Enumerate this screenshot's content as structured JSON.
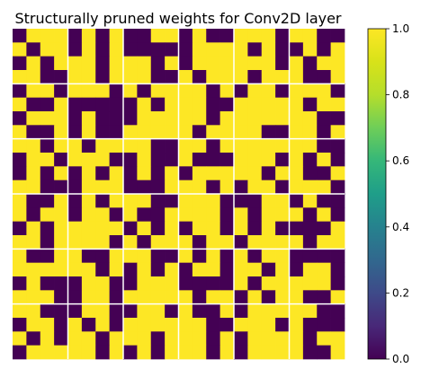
{
  "chart_data": {
    "type": "heatmap",
    "title": "Structurally pruned weights for Conv2D layer",
    "xlabel": "",
    "ylabel": "",
    "value_range": [
      0,
      1
    ],
    "colormap": "viridis",
    "colors": {
      "low": "#440154",
      "high": "#fde725",
      "separator": "#ffffff"
    },
    "colorbar": {
      "ticks": [
        0.0,
        0.2,
        0.4,
        0.6,
        0.8,
        1.0
      ],
      "tick_labels": [
        "0.0",
        "0.2",
        "0.4",
        "0.6",
        "0.8",
        "1.0"
      ]
    },
    "grid": true,
    "axes_visible": false,
    "rows": 24,
    "cols": 24,
    "matrix": [
      "011101010011010011101100",
      "101101010000011110100101",
      "010111011101011111101011",
      "110011011100101110111001",
      "011011101011110101101110",
      "100100000101110011111011",
      "011101000111110111111100",
      "100101001111101111001101",
      "110110111100110111111100",
      "011011100100100011101010",
      "010101010101011111011001",
      "110001110001110101101110",
      "100101011100111000110100",
      "101101101001111010111010",
      "010111110101011010100001",
      "110111101011101101111011",
      "100110011100101010110000",
      "111111010101011011010110",
      "010001100111000010111110",
      "111001101111101101011001",
      "110001100110100101111100",
      "011010101111110011101000",
      "101011011101110101111011",
      "011111010101110101111001"
    ]
  }
}
